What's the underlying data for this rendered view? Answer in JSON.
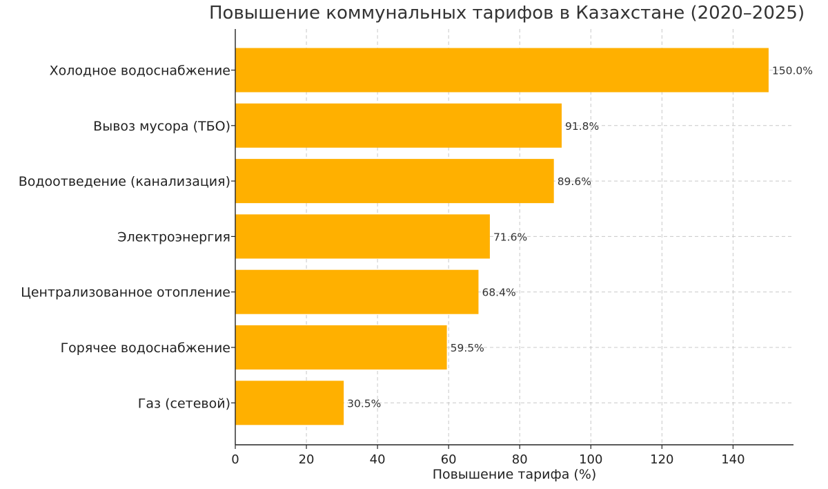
{
  "chart_data": {
    "type": "bar",
    "orientation": "horizontal",
    "title": "Повышение коммунальных тарифов в Казахстане (2020–2025)",
    "xlabel": "Повышение тарифа (%)",
    "ylabel": "",
    "xlim": [
      0,
      157
    ],
    "xticks": [
      0,
      20,
      40,
      60,
      80,
      100,
      120,
      140
    ],
    "grid": true,
    "categories": [
      "Холодное водоснабжение",
      "Вывоз мусора (ТБО)",
      "Водоотведение (канализация)",
      "Электроэнергия",
      "Централизованное отопление",
      "Горячее водоснабжение",
      "Газ (сетевой)"
    ],
    "values": [
      150.0,
      91.8,
      89.6,
      71.6,
      68.4,
      59.5,
      30.5
    ],
    "data_labels": [
      "150.0%",
      "91.8%",
      "89.6%",
      "71.6%",
      "68.4%",
      "59.5%",
      "30.5%"
    ],
    "bar_color": "#FFB000"
  }
}
